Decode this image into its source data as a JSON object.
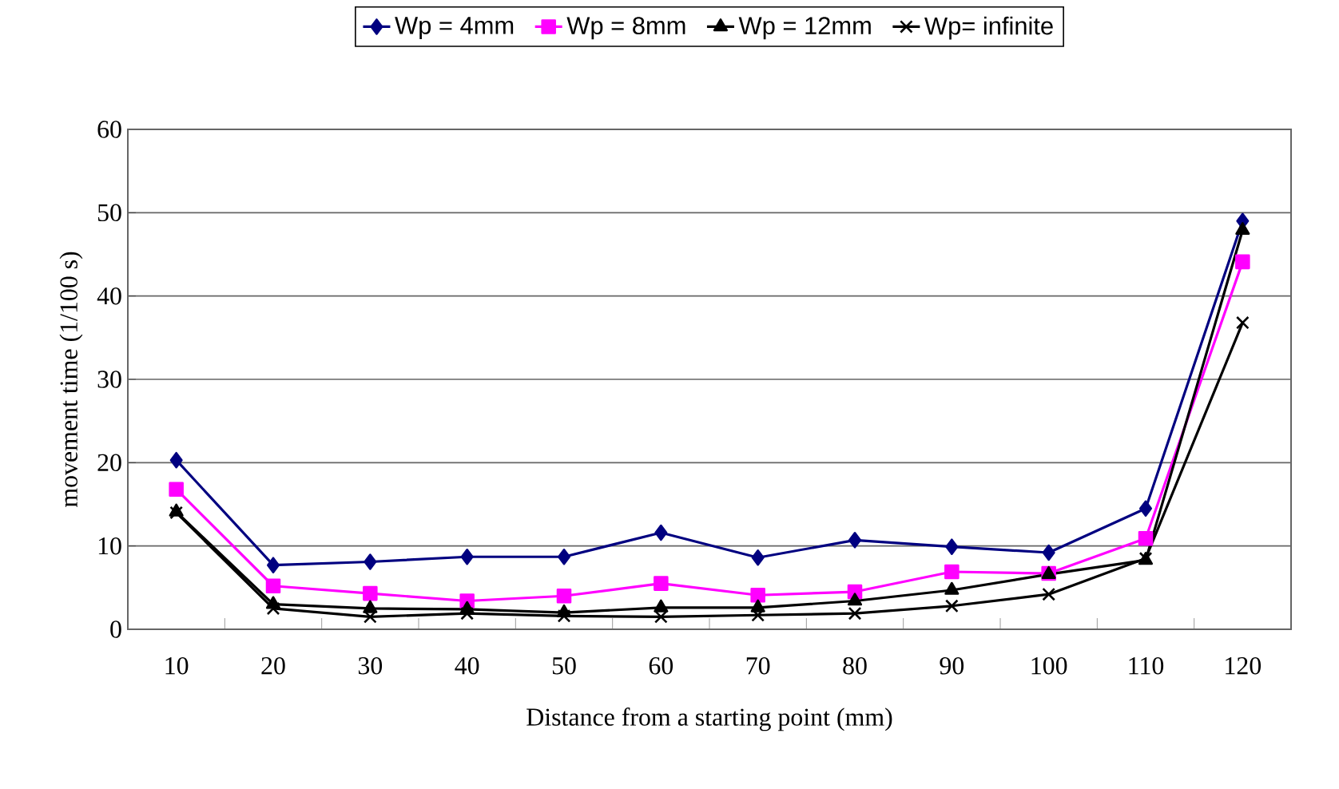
{
  "chart_data": {
    "type": "line",
    "xlabel": "Distance from a starting point (mm)",
    "ylabel": "movement time (1/100 s)",
    "categories": [
      "10",
      "20",
      "30",
      "40",
      "50",
      "60",
      "70",
      "80",
      "90",
      "100",
      "110",
      "120"
    ],
    "series": [
      {
        "name": "Wp = 4mm",
        "color": "#000080",
        "marker": "diamond",
        "values": [
          20.3,
          7.7,
          8.1,
          8.7,
          8.7,
          11.6,
          8.6,
          10.7,
          9.9,
          9.2,
          14.5,
          49
        ]
      },
      {
        "name": "Wp = 8mm",
        "color": "#ff00ff",
        "marker": "square",
        "values": [
          16.8,
          5.2,
          4.3,
          3.4,
          4.0,
          5.5,
          4.1,
          4.5,
          6.9,
          6.7,
          10.9,
          44.1
        ]
      },
      {
        "name": "Wp = 12mm",
        "color": "#000000",
        "marker": "triangle",
        "values": [
          14.1,
          3.0,
          2.5,
          2.4,
          2.0,
          2.6,
          2.6,
          3.4,
          4.7,
          6.6,
          8.3,
          47.9
        ]
      },
      {
        "name": "Wp= infinite",
        "color": "#000000",
        "marker": "cross",
        "values": [
          14,
          2.5,
          1.5,
          1.9,
          1.6,
          1.5,
          1.7,
          1.9,
          2.8,
          4.2,
          8.5,
          36.8
        ]
      }
    ],
    "ylim": [
      0,
      60
    ],
    "yticks": [
      0,
      10,
      20,
      30,
      40,
      50,
      60
    ],
    "grid": "y",
    "legend": "top"
  }
}
